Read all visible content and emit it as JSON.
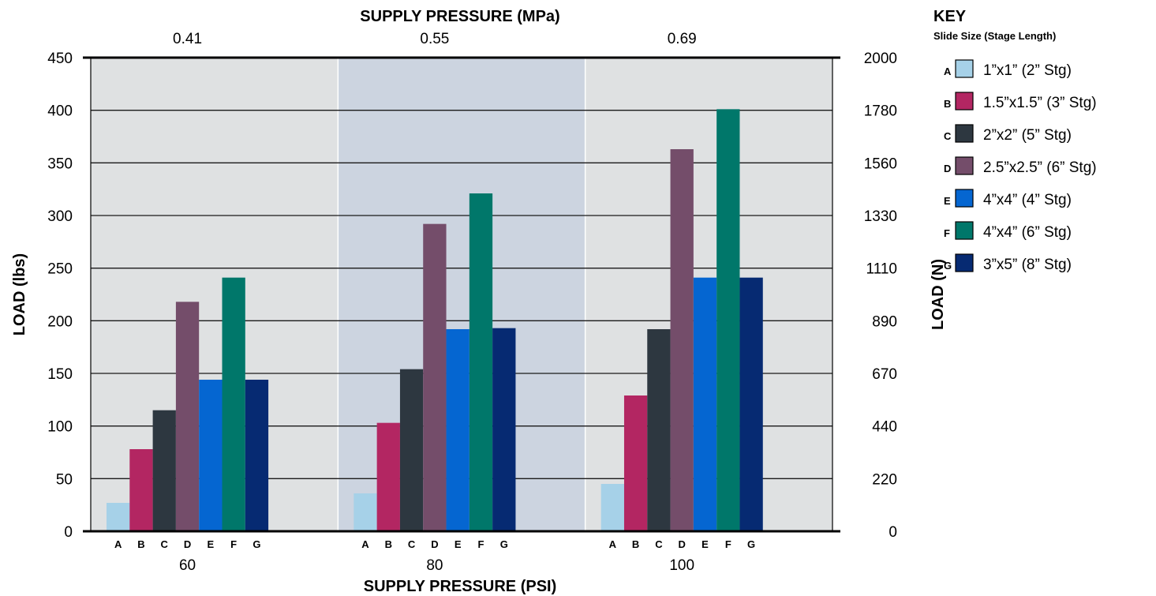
{
  "chart_data": {
    "type": "bar",
    "title": "",
    "xlabel": "SUPPLY PRESSURE (PSI)",
    "x2label": "SUPPLY PRESSURE (MPa)",
    "ylabel": "LOAD (lbs)",
    "y2label": "LOAD (N)",
    "ylim": [
      0,
      450
    ],
    "yticks": [
      "0",
      "50",
      "100",
      "150",
      "200",
      "250",
      "300",
      "350",
      "400",
      "450"
    ],
    "y2ticks": [
      "0",
      "220",
      "440",
      "670",
      "890",
      "1110",
      "1330",
      "1560",
      "1780",
      "2000"
    ],
    "groups": [
      "60",
      "80",
      "100"
    ],
    "groups_mpa": [
      "0.41",
      "0.55",
      "0.69"
    ],
    "bar_letters": [
      "A",
      "B",
      "C",
      "D",
      "E",
      "F",
      "G"
    ],
    "panel_colors": [
      "#dfe1e2",
      "#ccd4e0",
      "#dfe1e2"
    ],
    "grid": true,
    "legend_position": "right",
    "series": [
      {
        "name": "1”x1” (2” Stg)",
        "letter": "A",
        "color": "#a6d1e8",
        "values": [
          27,
          36,
          45
        ]
      },
      {
        "name": "1.5”x1.5” (3” Stg)",
        "letter": "B",
        "color": "#b32662",
        "values": [
          78,
          103,
          129
        ]
      },
      {
        "name": "2”x2” (5” Stg)",
        "letter": "C",
        "color": "#2d3740",
        "values": [
          115,
          154,
          192
        ]
      },
      {
        "name": "2.5”x2.5” (6” Stg)",
        "letter": "D",
        "color": "#744d6a",
        "values": [
          218,
          292,
          363
        ]
      },
      {
        "name": "4”x4” (4” Stg)",
        "letter": "E",
        "color": "#0566d1",
        "values": [
          144,
          192,
          241
        ]
      },
      {
        "name": "4”x4” (6” Stg)",
        "letter": "F",
        "color": "#00776a",
        "values": [
          241,
          321,
          401
        ]
      },
      {
        "name": "3”x5” (8” Stg)",
        "letter": "G",
        "color": "#062a72",
        "values": [
          144,
          193,
          241
        ]
      }
    ],
    "legend": {
      "title": "KEY",
      "subtitle": "Slide Size (Stage Length)"
    }
  }
}
